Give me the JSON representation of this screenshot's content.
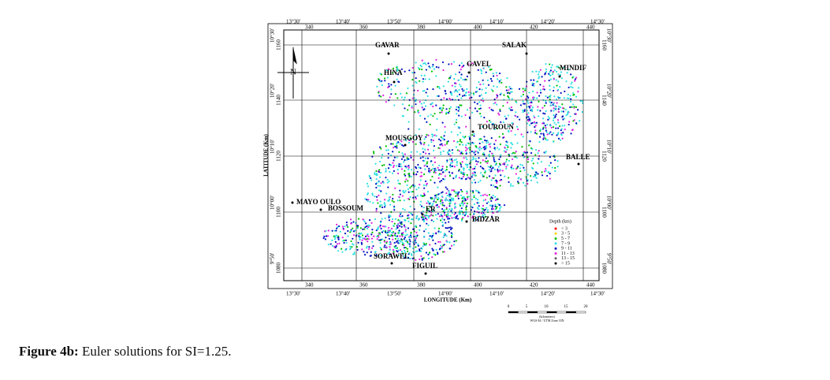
{
  "figure": {
    "caption_label": "Figure 4b:",
    "caption_text": "Euler solutions for SI=1.25.",
    "map": {
      "top_degree_ticks": [
        "13°30'",
        "13°40'",
        "13°50'",
        "14°00'",
        "14°10'",
        "14°20'",
        "14°30'"
      ],
      "km_x_ticks": [
        "340",
        "360",
        "380",
        "400",
        "420",
        "440"
      ],
      "left_degree_ticks": [
        "10°30'",
        "10°20'",
        "10°10'",
        "10°00'",
        "9°50'"
      ],
      "km_y_ticks": [
        "1160",
        "1140",
        "1120",
        "1100",
        "1080"
      ],
      "x_axis_label": "LONGITUDE (Km)",
      "y_axis_label": "LATITUDE (Km)",
      "towns": [
        "GAVAR",
        "SALAK",
        "GAVEL",
        "MINDIF",
        "HINA",
        "TOUROUN",
        "MOUSGOY",
        "BALLE",
        "MAYO OULO",
        "BOSSOUM",
        "ER",
        "BIDZAR",
        "SORAWEL",
        "FIGUIL"
      ],
      "legend": {
        "title": "Depth (km)",
        "entries": [
          {
            "label": "< 3",
            "color": "#ff0000"
          },
          {
            "label": "3 - 5",
            "color": "#ffd000"
          },
          {
            "label": "5 - 7",
            "color": "#00c000"
          },
          {
            "label": "7 - 9",
            "color": "#30e0e0"
          },
          {
            "label": "9 - 11",
            "color": "#0010c0"
          },
          {
            "label": "11 - 13",
            "color": "#e020e0"
          },
          {
            "label": "13 - 15",
            "color": "#606060"
          },
          {
            "label": "> 15",
            "color": "#000000"
          }
        ]
      },
      "scale": {
        "ticks": [
          "0",
          "5",
          "10",
          "15",
          "20"
        ],
        "unit": "(kilometers)",
        "projection": "WGS 84 / UTM Zone 33N"
      }
    }
  }
}
